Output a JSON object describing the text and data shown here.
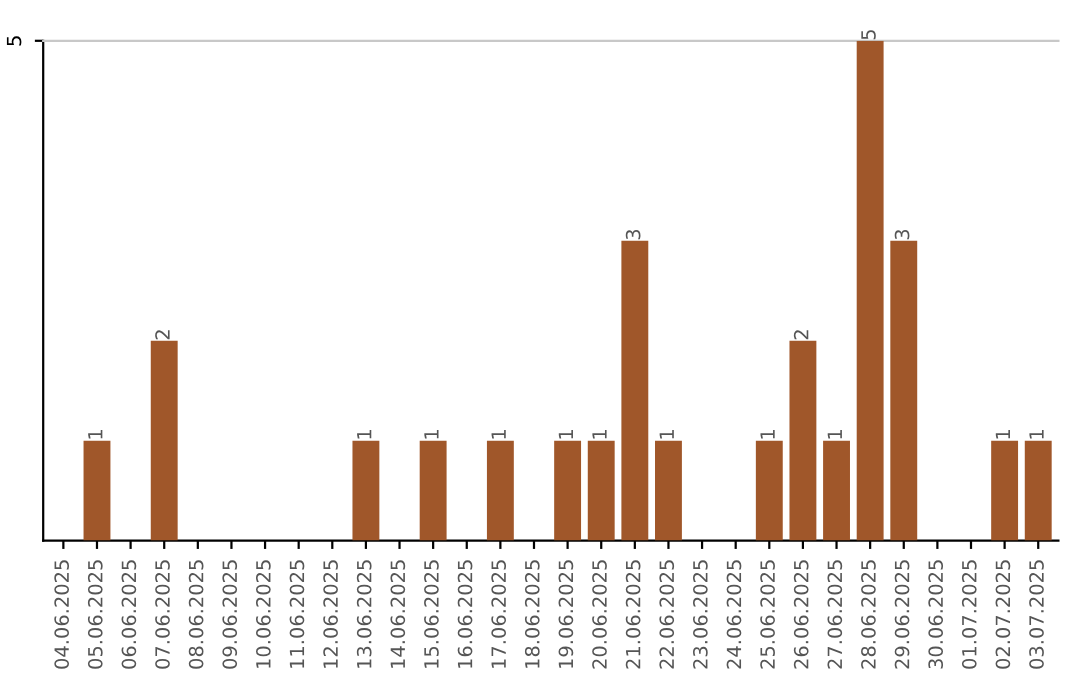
{
  "chart_data": {
    "type": "bar",
    "categories": [
      "04.06.2025",
      "05.06.2025",
      "06.06.2025",
      "07.06.2025",
      "08.06.2025",
      "09.06.2025",
      "10.06.2025",
      "11.06.2025",
      "12.06.2025",
      "13.06.2025",
      "14.06.2025",
      "15.06.2025",
      "16.06.2025",
      "17.06.2025",
      "18.06.2025",
      "19.06.2025",
      "20.06.2025",
      "21.06.2025",
      "22.06.2025",
      "23.06.2025",
      "24.06.2025",
      "25.06.2025",
      "26.06.2025",
      "27.06.2025",
      "28.06.2025",
      "29.06.2025",
      "30.06.2025",
      "01.07.2025",
      "02.07.2025",
      "03.07.2025"
    ],
    "values": [
      0,
      1,
      0,
      2,
      0,
      0,
      0,
      0,
      0,
      1,
      0,
      1,
      0,
      1,
      0,
      1,
      1,
      3,
      1,
      0,
      0,
      1,
      2,
      1,
      5,
      3,
      0,
      0,
      1,
      1
    ],
    "value_labels": [
      null,
      "1",
      null,
      "2",
      null,
      null,
      null,
      null,
      null,
      "1",
      null,
      "1",
      null,
      "1",
      null,
      "1",
      "1",
      "3",
      "1",
      null,
      null,
      "1",
      "2",
      "1",
      "5",
      "3",
      null,
      null,
      "1",
      "1"
    ],
    "color": "#a0572a",
    "ylim": [
      0,
      5
    ],
    "yticks": [
      5
    ]
  }
}
